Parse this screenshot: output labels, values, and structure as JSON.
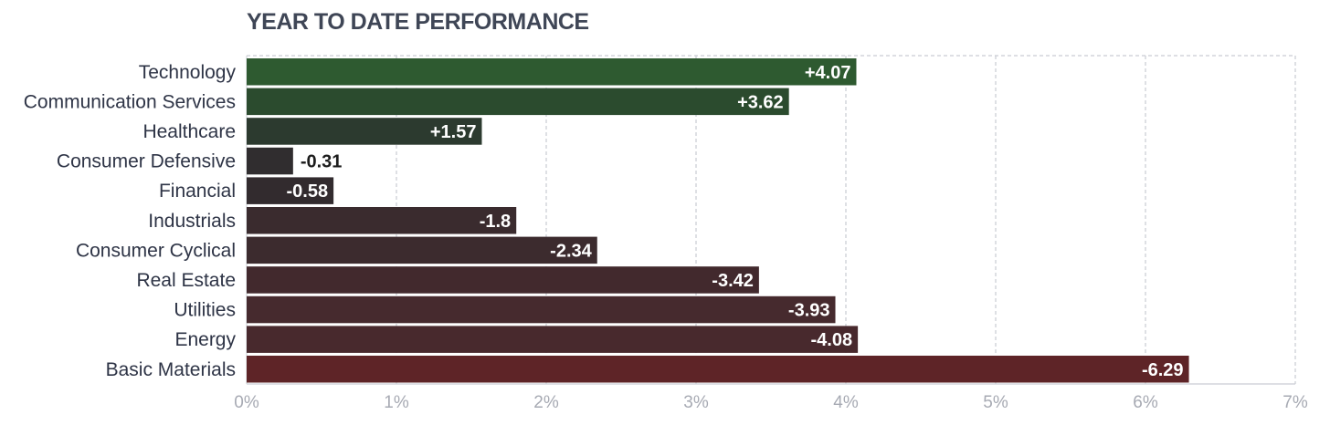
{
  "title": "YEAR TO DATE PERFORMANCE",
  "chart_data": {
    "type": "bar",
    "orientation": "horizontal",
    "title": "YEAR TO DATE PERFORMANCE",
    "xlabel": "",
    "ylabel": "",
    "categories": [
      "Technology",
      "Communication Services",
      "Healthcare",
      "Consumer Defensive",
      "Financial",
      "Industrials",
      "Consumer Cyclical",
      "Real Estate",
      "Utilities",
      "Energy",
      "Basic Materials"
    ],
    "values": [
      4.07,
      3.62,
      1.57,
      -0.31,
      -0.58,
      -1.8,
      -2.34,
      -3.42,
      -3.93,
      -4.08,
      -6.29
    ],
    "value_labels": [
      "+4.07",
      "+3.62",
      "+1.57",
      "-0.31",
      "-0.58",
      "-1.8",
      "-2.34",
      "-3.42",
      "-3.93",
      "-4.08",
      "-6.29"
    ],
    "bar_colors": [
      "#2e5a30",
      "#2b4b2e",
      "#2c3a2f",
      "#302d2f",
      "#322b2e",
      "#3a2b2e",
      "#3c2b2e",
      "#42292d",
      "#462a2e",
      "#48292d",
      "#5e2427"
    ],
    "bar_length": "absolute value",
    "xlim": [
      0,
      7
    ],
    "xticks": [
      0,
      1,
      2,
      3,
      4,
      5,
      6,
      7
    ],
    "xtick_labels": [
      "0%",
      "1%",
      "2%",
      "3%",
      "4%",
      "5%",
      "6%",
      "7%"
    ],
    "grid": "vertical dashed",
    "legend": "none"
  }
}
